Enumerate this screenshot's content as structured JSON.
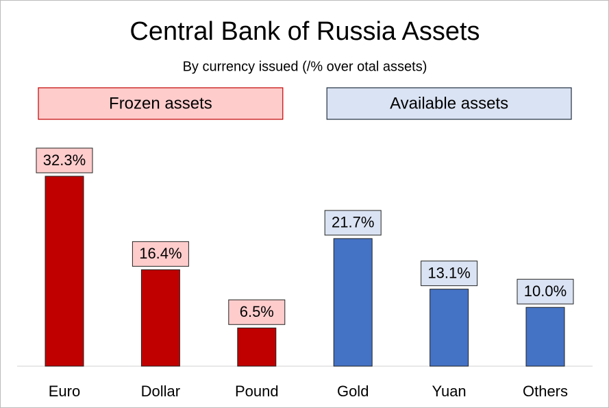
{
  "chart_data": {
    "type": "bar",
    "title": "Central Bank of Russia Assets",
    "subtitle": "By currency issued (/% over otal assets)",
    "groups": [
      {
        "name": "Frozen assets",
        "color": "#c00000",
        "label_fill": "#ffcccc",
        "label_border": "#c00000",
        "categories": [
          "Euro",
          "Dollar",
          "Pound"
        ],
        "values": [
          32.3,
          16.4,
          6.5
        ],
        "value_labels": [
          "32.3%",
          "16.4%",
          "6.5%"
        ]
      },
      {
        "name": "Available assets",
        "color": "#4472c4",
        "label_fill": "#dae3f3",
        "label_border": "#1f2d3d",
        "categories": [
          "Gold",
          "Yuan",
          "Others"
        ],
        "values": [
          21.7,
          13.1,
          10.0
        ],
        "value_labels": [
          "21.7%",
          "13.1%",
          "10.0%"
        ]
      }
    ]
  }
}
